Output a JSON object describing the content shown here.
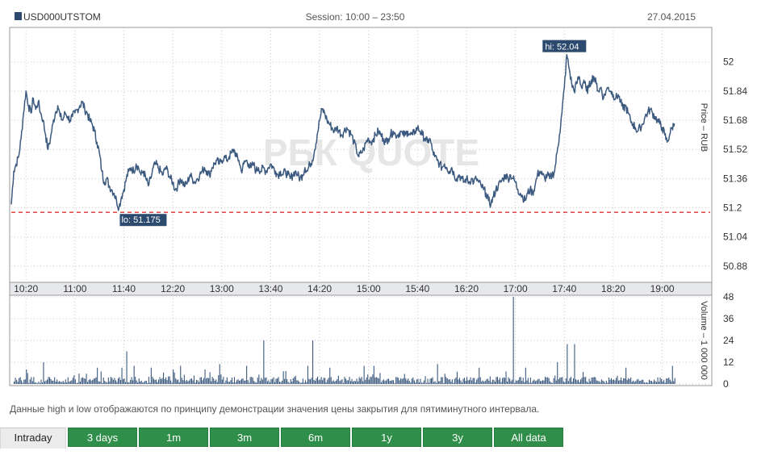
{
  "header": {
    "ticker": "USD000UTSTOM",
    "session": "Session: 10:00 – 23:50",
    "date": "27.04.2015"
  },
  "watermark": "РБК QUOTE",
  "note": "Данные high и low отображаются по принципу демонстрации значения цены закрытия для пятиминутного интервала.",
  "tabs": [
    {
      "label": "Intraday",
      "active": true
    },
    {
      "label": "3 days",
      "active": false
    },
    {
      "label": "1m",
      "active": false
    },
    {
      "label": "3m",
      "active": false
    },
    {
      "label": "6m",
      "active": false
    },
    {
      "label": "1y",
      "active": false
    },
    {
      "label": "3y",
      "active": false
    },
    {
      "label": "All data",
      "active": false
    }
  ],
  "colors": {
    "line": "#3c5a7f",
    "volume": "#3c5a7f",
    "low_line": "#e03030",
    "label_bg": "#2c4a6e",
    "grid": "#c8c8c8",
    "tab_green": "#2f8f4a"
  },
  "chart_data": [
    {
      "type": "line",
      "xlabel": "",
      "ylabel": "Price – RUB",
      "x_ticks": [
        "10:20",
        "11:00",
        "11:40",
        "12:20",
        "13:00",
        "13:40",
        "14:20",
        "15:00",
        "15:40",
        "16:20",
        "17:00",
        "17:40",
        "18:20",
        "19:00"
      ],
      "y_ticks": [
        "52",
        "51.84",
        "51.68",
        "51.52",
        "51.36",
        "51.2",
        "51.04",
        "50.88"
      ],
      "ylim": [
        50.8,
        52.18
      ],
      "xlim": [
        "10:08",
        "19:26"
      ],
      "low_label": "lo: 51.175",
      "high_label": "hi: 52.04",
      "low_value": 51.175,
      "high_value": 52.04,
      "grid": true,
      "points": [
        [
          "10:08",
          51.22
        ],
        [
          "10:10",
          51.4
        ],
        [
          "10:12",
          51.44
        ],
        [
          "10:14",
          51.48
        ],
        [
          "10:16",
          51.58
        ],
        [
          "10:18",
          51.72
        ],
        [
          "10:20",
          51.84
        ],
        [
          "10:22",
          51.76
        ],
        [
          "10:24",
          51.72
        ],
        [
          "10:26",
          51.8
        ],
        [
          "10:28",
          51.74
        ],
        [
          "10:30",
          51.78
        ],
        [
          "10:32",
          51.72
        ],
        [
          "10:34",
          51.68
        ],
        [
          "10:36",
          51.6
        ],
        [
          "10:38",
          51.52
        ],
        [
          "10:40",
          51.58
        ],
        [
          "10:42",
          51.66
        ],
        [
          "10:44",
          51.72
        ],
        [
          "10:46",
          51.76
        ],
        [
          "10:48",
          51.7
        ],
        [
          "10:50",
          51.68
        ],
        [
          "10:52",
          51.72
        ],
        [
          "10:54",
          51.7
        ],
        [
          "10:56",
          51.68
        ],
        [
          "10:58",
          51.7
        ],
        [
          "11:00",
          51.72
        ],
        [
          "11:02",
          51.74
        ],
        [
          "11:04",
          51.76
        ],
        [
          "11:06",
          51.78
        ],
        [
          "11:08",
          51.74
        ],
        [
          "11:10",
          51.72
        ],
        [
          "11:12",
          51.68
        ],
        [
          "11:14",
          51.66
        ],
        [
          "11:16",
          51.62
        ],
        [
          "11:18",
          51.56
        ],
        [
          "11:20",
          51.5
        ],
        [
          "11:22",
          51.4
        ],
        [
          "11:24",
          51.34
        ],
        [
          "11:26",
          51.36
        ],
        [
          "11:28",
          51.32
        ],
        [
          "11:30",
          51.3
        ],
        [
          "11:32",
          51.28
        ],
        [
          "11:34",
          51.24
        ],
        [
          "11:36",
          51.2
        ],
        [
          "11:38",
          51.26
        ],
        [
          "11:40",
          51.3
        ],
        [
          "11:42",
          51.36
        ],
        [
          "11:44",
          51.4
        ],
        [
          "11:46",
          51.42
        ],
        [
          "11:48",
          51.4
        ],
        [
          "11:50",
          51.44
        ],
        [
          "11:52",
          51.42
        ],
        [
          "11:54",
          51.38
        ],
        [
          "11:56",
          51.4
        ],
        [
          "11:58",
          51.36
        ],
        [
          "12:00",
          51.32
        ],
        [
          "12:02",
          51.36
        ],
        [
          "12:04",
          51.42
        ],
        [
          "12:06",
          51.44
        ],
        [
          "12:08",
          51.42
        ],
        [
          "12:10",
          51.4
        ],
        [
          "12:12",
          51.38
        ],
        [
          "12:14",
          51.42
        ],
        [
          "12:16",
          51.4
        ],
        [
          "12:18",
          51.36
        ],
        [
          "12:20",
          51.34
        ],
        [
          "12:22",
          51.3
        ],
        [
          "12:24",
          51.32
        ],
        [
          "12:26",
          51.36
        ],
        [
          "12:28",
          51.34
        ],
        [
          "12:30",
          51.32
        ],
        [
          "12:32",
          51.34
        ],
        [
          "12:34",
          51.38
        ],
        [
          "12:36",
          51.36
        ],
        [
          "12:38",
          51.34
        ],
        [
          "12:40",
          51.36
        ],
        [
          "12:42",
          51.38
        ],
        [
          "12:44",
          51.4
        ],
        [
          "12:46",
          51.42
        ],
        [
          "12:48",
          51.4
        ],
        [
          "12:50",
          51.38
        ],
        [
          "12:52",
          51.42
        ],
        [
          "12:54",
          51.44
        ],
        [
          "12:56",
          51.46
        ],
        [
          "12:58",
          51.44
        ],
        [
          "13:00",
          51.46
        ],
        [
          "13:02",
          51.48
        ],
        [
          "13:04",
          51.46
        ],
        [
          "13:06",
          51.48
        ],
        [
          "13:08",
          51.5
        ],
        [
          "13:10",
          51.52
        ],
        [
          "13:12",
          51.48
        ],
        [
          "13:14",
          51.46
        ],
        [
          "13:16",
          51.4
        ],
        [
          "13:18",
          51.44
        ],
        [
          "13:20",
          51.46
        ],
        [
          "13:22",
          51.44
        ],
        [
          "13:24",
          51.42
        ],
        [
          "13:26",
          51.44
        ],
        [
          "13:28",
          51.4
        ],
        [
          "13:30",
          51.42
        ],
        [
          "13:32",
          51.4
        ],
        [
          "13:34",
          51.42
        ],
        [
          "13:36",
          51.4
        ],
        [
          "13:38",
          51.42
        ],
        [
          "13:40",
          51.44
        ],
        [
          "13:42",
          51.42
        ],
        [
          "13:44",
          51.4
        ],
        [
          "13:46",
          51.38
        ],
        [
          "13:48",
          51.4
        ],
        [
          "13:50",
          51.38
        ],
        [
          "13:52",
          51.4
        ],
        [
          "13:54",
          51.38
        ],
        [
          "13:56",
          51.36
        ],
        [
          "13:58",
          51.38
        ],
        [
          "14:00",
          51.4
        ],
        [
          "14:02",
          51.38
        ],
        [
          "14:04",
          51.36
        ],
        [
          "14:06",
          51.38
        ],
        [
          "14:08",
          51.42
        ],
        [
          "14:10",
          51.4
        ],
        [
          "14:12",
          51.44
        ],
        [
          "14:14",
          51.46
        ],
        [
          "14:16",
          51.52
        ],
        [
          "14:18",
          51.6
        ],
        [
          "14:20",
          51.68
        ],
        [
          "14:22",
          51.74
        ],
        [
          "14:24",
          51.72
        ],
        [
          "14:26",
          51.68
        ],
        [
          "14:28",
          51.66
        ],
        [
          "14:30",
          51.64
        ],
        [
          "14:32",
          51.62
        ],
        [
          "14:34",
          51.64
        ],
        [
          "14:36",
          51.62
        ],
        [
          "14:38",
          51.6
        ],
        [
          "14:40",
          51.62
        ],
        [
          "14:42",
          51.64
        ],
        [
          "14:44",
          51.62
        ],
        [
          "14:46",
          51.6
        ],
        [
          "14:48",
          51.56
        ],
        [
          "14:50",
          51.52
        ],
        [
          "14:52",
          51.48
        ],
        [
          "14:54",
          51.5
        ],
        [
          "14:56",
          51.52
        ],
        [
          "14:58",
          51.56
        ],
        [
          "15:00",
          51.58
        ],
        [
          "15:02",
          51.56
        ],
        [
          "15:04",
          51.58
        ],
        [
          "15:06",
          51.6
        ],
        [
          "15:08",
          51.62
        ],
        [
          "15:10",
          51.6
        ],
        [
          "15:12",
          51.58
        ],
        [
          "15:14",
          51.56
        ],
        [
          "15:16",
          51.58
        ],
        [
          "15:18",
          51.6
        ],
        [
          "15:20",
          51.62
        ],
        [
          "15:22",
          51.6
        ],
        [
          "15:24",
          51.6
        ],
        [
          "15:26",
          51.62
        ],
        [
          "15:28",
          51.6
        ],
        [
          "15:30",
          51.6
        ],
        [
          "15:32",
          51.62
        ],
        [
          "15:34",
          51.6
        ],
        [
          "15:36",
          51.6
        ],
        [
          "15:38",
          51.62
        ],
        [
          "15:40",
          51.64
        ],
        [
          "15:42",
          51.62
        ],
        [
          "15:44",
          51.6
        ],
        [
          "15:46",
          51.58
        ],
        [
          "15:48",
          51.56
        ],
        [
          "15:50",
          51.58
        ],
        [
          "15:52",
          51.52
        ],
        [
          "15:54",
          51.48
        ],
        [
          "15:56",
          51.46
        ],
        [
          "15:58",
          51.44
        ],
        [
          "16:00",
          51.42
        ],
        [
          "16:02",
          51.44
        ],
        [
          "16:04",
          51.42
        ],
        [
          "16:06",
          51.4
        ],
        [
          "16:08",
          51.42
        ],
        [
          "16:10",
          51.38
        ],
        [
          "16:12",
          51.36
        ],
        [
          "16:14",
          51.38
        ],
        [
          "16:16",
          51.36
        ],
        [
          "16:18",
          51.34
        ],
        [
          "16:20",
          51.36
        ],
        [
          "16:22",
          51.34
        ],
        [
          "16:24",
          51.36
        ],
        [
          "16:26",
          51.34
        ],
        [
          "16:28",
          51.36
        ],
        [
          "16:30",
          51.34
        ],
        [
          "16:32",
          51.32
        ],
        [
          "16:34",
          51.3
        ],
        [
          "16:36",
          51.28
        ],
        [
          "16:38",
          51.24
        ],
        [
          "16:40",
          51.22
        ],
        [
          "16:42",
          51.26
        ],
        [
          "16:44",
          51.3
        ],
        [
          "16:46",
          51.32
        ],
        [
          "16:48",
          51.34
        ],
        [
          "16:50",
          51.36
        ],
        [
          "16:52",
          51.38
        ],
        [
          "16:54",
          51.36
        ],
        [
          "16:56",
          51.38
        ],
        [
          "16:58",
          51.36
        ],
        [
          "17:00",
          51.34
        ],
        [
          "17:02",
          51.3
        ],
        [
          "17:04",
          51.28
        ],
        [
          "17:06",
          51.26
        ],
        [
          "17:08",
          51.24
        ],
        [
          "17:10",
          51.28
        ],
        [
          "17:12",
          51.3
        ],
        [
          "17:14",
          51.28
        ],
        [
          "17:16",
          51.32
        ],
        [
          "17:18",
          51.38
        ],
        [
          "17:20",
          51.4
        ],
        [
          "17:22",
          51.38
        ],
        [
          "17:24",
          51.36
        ],
        [
          "17:26",
          51.38
        ],
        [
          "17:28",
          51.36
        ],
        [
          "17:30",
          51.38
        ],
        [
          "17:32",
          51.4
        ],
        [
          "17:34",
          51.5
        ],
        [
          "17:36",
          51.6
        ],
        [
          "17:38",
          51.72
        ],
        [
          "17:40",
          51.86
        ],
        [
          "17:42",
          52.04
        ],
        [
          "17:44",
          51.96
        ],
        [
          "17:46",
          51.88
        ],
        [
          "17:48",
          51.84
        ],
        [
          "17:50",
          51.88
        ],
        [
          "17:52",
          51.92
        ],
        [
          "17:54",
          51.86
        ],
        [
          "17:56",
          51.9
        ],
        [
          "17:58",
          51.84
        ],
        [
          "18:00",
          51.86
        ],
        [
          "18:02",
          51.9
        ],
        [
          "18:04",
          51.92
        ],
        [
          "18:06",
          51.88
        ],
        [
          "18:08",
          51.84
        ],
        [
          "18:10",
          51.86
        ],
        [
          "18:12",
          51.8
        ],
        [
          "18:14",
          51.84
        ],
        [
          "18:16",
          51.86
        ],
        [
          "18:18",
          51.84
        ],
        [
          "18:20",
          51.82
        ],
        [
          "18:22",
          51.8
        ],
        [
          "18:24",
          51.82
        ],
        [
          "18:26",
          51.78
        ],
        [
          "18:28",
          51.74
        ],
        [
          "18:30",
          51.76
        ],
        [
          "18:32",
          51.72
        ],
        [
          "18:34",
          51.68
        ],
        [
          "18:36",
          51.66
        ],
        [
          "18:38",
          51.64
        ],
        [
          "18:40",
          51.62
        ],
        [
          "18:42",
          51.64
        ],
        [
          "18:44",
          51.66
        ],
        [
          "18:46",
          51.7
        ],
        [
          "18:48",
          51.72
        ],
        [
          "18:50",
          51.74
        ],
        [
          "18:52",
          51.72
        ],
        [
          "18:54",
          51.7
        ],
        [
          "18:56",
          51.68
        ],
        [
          "18:58",
          51.66
        ],
        [
          "19:00",
          51.64
        ],
        [
          "19:02",
          51.6
        ],
        [
          "19:04",
          51.56
        ],
        [
          "19:06",
          51.6
        ],
        [
          "19:08",
          51.64
        ],
        [
          "19:10",
          51.66
        ]
      ]
    },
    {
      "type": "bar",
      "ylabel": "Volume – 1 000 000",
      "y_ticks": [
        "48",
        "36",
        "24",
        "12",
        "0"
      ],
      "ylim": [
        0,
        48
      ],
      "spikes": [
        [
          "10:20",
          8
        ],
        [
          "10:34",
          12
        ],
        [
          "11:18",
          9
        ],
        [
          "11:38",
          9
        ],
        [
          "11:42",
          18
        ],
        [
          "11:48",
          10
        ],
        [
          "12:02",
          9
        ],
        [
          "12:20",
          8
        ],
        [
          "12:26",
          10
        ],
        [
          "12:46",
          8
        ],
        [
          "12:58",
          11
        ],
        [
          "13:20",
          10
        ],
        [
          "13:34",
          24
        ],
        [
          "14:10",
          10
        ],
        [
          "14:14",
          24
        ],
        [
          "14:28",
          9
        ],
        [
          "14:56",
          10
        ],
        [
          "15:04",
          10
        ],
        [
          "15:56",
          11
        ],
        [
          "16:30",
          9
        ],
        [
          "16:58",
          48
        ],
        [
          "17:08",
          9
        ],
        [
          "17:34",
          12
        ],
        [
          "17:42",
          22
        ],
        [
          "17:48",
          22
        ],
        [
          "18:30",
          9
        ],
        [
          "19:08",
          10
        ]
      ]
    }
  ]
}
